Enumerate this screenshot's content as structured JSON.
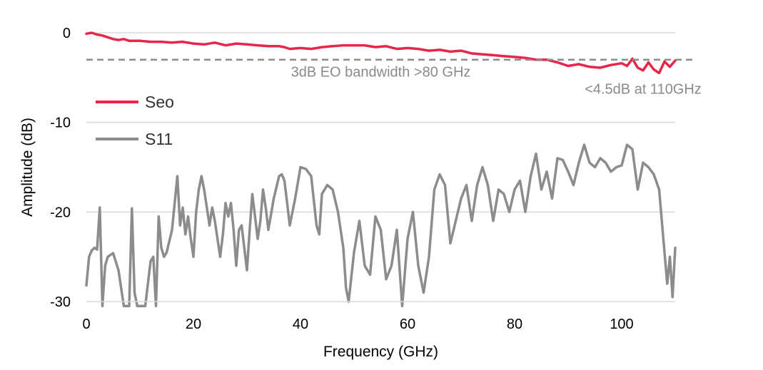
{
  "chart_data": {
    "type": "line",
    "title": "",
    "xlabel": "Frequency (GHz)",
    "ylabel": "Amplitude (dB)",
    "xlim": [
      0,
      110
    ],
    "ylim": [
      -30,
      0
    ],
    "xticks": [
      0,
      20,
      40,
      60,
      80,
      100
    ],
    "yticks": [
      0,
      -10,
      -20,
      -30
    ],
    "xtick_labels": [
      "0",
      "20",
      "40",
      "60",
      "80",
      "100"
    ],
    "ytick_labels": [
      "0",
      "-10",
      "-20",
      "-30"
    ],
    "grid": "horizontal",
    "legend_placement": "left",
    "reference_line": {
      "y": -3,
      "style": "dashed",
      "color": "#8c8c8c"
    },
    "annotations": [
      {
        "text": "3dB EO bandwidth >80 GHz",
        "x": 55,
        "y": -4.9
      },
      {
        "text": "<4.5dB at 110GHz",
        "x": 104,
        "y": -6.8
      }
    ],
    "series": [
      {
        "name": "Seo",
        "color": "#e8264a",
        "x": [
          0,
          1,
          2,
          3,
          4,
          5,
          6,
          7,
          8,
          9,
          10,
          12,
          14,
          16,
          18,
          20,
          22,
          24,
          26,
          28,
          30,
          32,
          34,
          36,
          37,
          38,
          40,
          42,
          44,
          46,
          48,
          50,
          52,
          54,
          56,
          58,
          60,
          62,
          64,
          66,
          68,
          70,
          72,
          74,
          76,
          78,
          80,
          82,
          84,
          86,
          88,
          90,
          92,
          94,
          96,
          98,
          100,
          101,
          102,
          103,
          104,
          105,
          106,
          107,
          108,
          109,
          110
        ],
        "values": [
          -0.1,
          0.0,
          -0.2,
          -0.3,
          -0.5,
          -0.7,
          -0.8,
          -0.7,
          -0.9,
          -0.9,
          -0.9,
          -1.0,
          -1.0,
          -1.1,
          -1.0,
          -1.2,
          -1.3,
          -1.1,
          -1.4,
          -1.2,
          -1.3,
          -1.4,
          -1.5,
          -1.5,
          -1.6,
          -1.8,
          -1.7,
          -1.8,
          -1.6,
          -1.5,
          -1.4,
          -1.4,
          -1.4,
          -1.6,
          -1.5,
          -1.8,
          -1.7,
          -1.8,
          -2.0,
          -1.9,
          -2.1,
          -2.0,
          -2.3,
          -2.4,
          -2.5,
          -2.6,
          -2.7,
          -2.8,
          -3.0,
          -3.0,
          -3.3,
          -3.7,
          -3.5,
          -3.8,
          -3.9,
          -3.6,
          -3.4,
          -3.7,
          -2.9,
          -3.9,
          -4.2,
          -3.3,
          -4.1,
          -4.5,
          -3.2,
          -3.8,
          -3.1
        ]
      },
      {
        "name": "S11",
        "color": "#8c8c8c",
        "x": [
          0,
          0.5,
          1,
          1.5,
          2,
          2.5,
          3,
          3.5,
          4,
          5,
          6,
          7,
          8,
          8.5,
          9,
          9.5,
          10,
          11,
          12,
          12.5,
          13,
          13.5,
          14,
          14.5,
          15,
          16,
          17,
          17.5,
          18,
          18.5,
          19,
          19.5,
          20,
          20.5,
          21,
          21.5,
          22,
          22.5,
          23,
          23.5,
          24,
          25,
          25.5,
          26,
          26.5,
          27,
          27.5,
          28,
          28.5,
          29,
          30,
          30.5,
          31,
          31.5,
          32,
          32.5,
          33,
          33.5,
          34,
          35,
          36,
          36.5,
          37,
          37.5,
          38,
          39,
          40,
          41,
          42,
          43,
          43.5,
          44,
          45,
          46,
          47,
          48,
          48.5,
          49,
          50,
          51,
          52,
          53,
          54,
          55,
          56,
          57,
          58,
          59,
          60,
          61,
          62,
          63,
          64,
          65,
          66,
          67,
          68,
          69,
          70,
          71,
          72,
          73,
          74,
          75,
          76,
          77,
          78,
          79,
          80,
          81,
          82,
          83,
          84,
          85,
          86,
          87,
          88,
          89,
          90,
          91,
          92,
          93,
          94,
          95,
          96,
          97,
          98,
          99,
          100,
          101,
          102,
          103,
          104,
          105,
          106,
          107,
          108,
          108.5,
          109,
          109.5,
          110
        ],
        "values": [
          -28.2,
          -25.0,
          -24.3,
          -24.0,
          -24.2,
          -19.5,
          -30.5,
          -26.0,
          -25.0,
          -24.6,
          -26.5,
          -30.5,
          -30.5,
          -19.6,
          -29.0,
          -30.5,
          -30.5,
          -30.5,
          -25.5,
          -25.0,
          -30.5,
          -20.5,
          -24.0,
          -25.0,
          -24.5,
          -22.0,
          -16.0,
          -21.5,
          -19.5,
          -22.5,
          -20.5,
          -23.0,
          -25.0,
          -20.0,
          -17.5,
          -16.0,
          -17.5,
          -19.5,
          -21.5,
          -19.5,
          -21.0,
          -25.0,
          -22.5,
          -19.0,
          -20.5,
          -19.0,
          -22.0,
          -26.0,
          -22.0,
          -21.5,
          -26.5,
          -22.0,
          -18.0,
          -20.5,
          -23.0,
          -21.0,
          -17.5,
          -19.5,
          -22.0,
          -18.5,
          -16.0,
          -15.8,
          -16.5,
          -19.0,
          -21.5,
          -18.5,
          -15.0,
          -15.2,
          -16.0,
          -21.5,
          -22.5,
          -18.0,
          -17.0,
          -17.5,
          -20.0,
          -24.0,
          -28.5,
          -30.0,
          -24.5,
          -21.0,
          -26.0,
          -27.0,
          -20.5,
          -22.0,
          -27.5,
          -26.0,
          -22.0,
          -30.5,
          -23.0,
          -20.0,
          -26.0,
          -29.0,
          -25.0,
          -17.5,
          -15.8,
          -17.0,
          -23.5,
          -21.0,
          -18.5,
          -17.0,
          -21.0,
          -17.0,
          -15.0,
          -17.0,
          -21.0,
          -17.5,
          -18.0,
          -20.0,
          -17.5,
          -16.5,
          -20.0,
          -16.0,
          -13.5,
          -17.5,
          -15.5,
          -18.5,
          -14.0,
          -14.2,
          -15.5,
          -17.0,
          -14.5,
          -12.5,
          -14.5,
          -15.0,
          -14.0,
          -14.5,
          -15.5,
          -15.0,
          -14.8,
          -12.5,
          -13.0,
          -17.5,
          -14.5,
          -15.0,
          -15.8,
          -17.5,
          -24.5,
          -28.0,
          -25.0,
          -29.5,
          -24.0
        ]
      }
    ]
  }
}
